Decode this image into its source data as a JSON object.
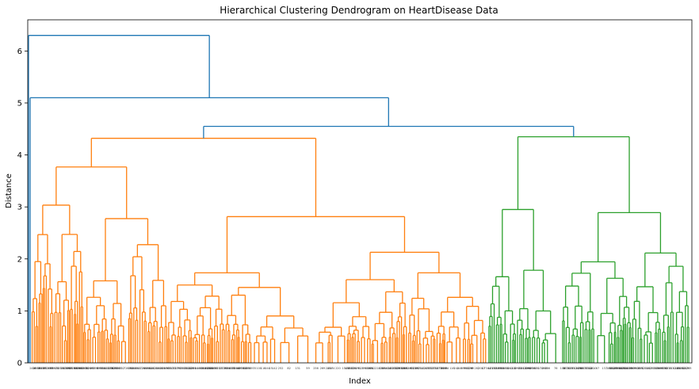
{
  "chart_data": {
    "type": "dendrogram",
    "title": "Hierarchical Clustering Dendrogram on HeartDisease Data",
    "xlabel": "Index",
    "ylabel": "Distance",
    "ylim": [
      0,
      6.6
    ],
    "yticks": [
      0,
      1,
      2,
      3,
      4,
      5,
      6
    ],
    "grid": false,
    "colors": {
      "cluster_orange": "#ff7f0e",
      "cluster_green": "#2ca02c",
      "above_threshold": "#1f77b4"
    },
    "clusters": [
      {
        "color": "#ff7f0e",
        "merge_heights": [
          4.32,
          4.05,
          3.88,
          3.6,
          3.55,
          3.42,
          3.1,
          3.0,
          2.95,
          2.75,
          2.55,
          2.4,
          2.3,
          2.1,
          2.0,
          1.95,
          1.85,
          1.7,
          1.55,
          1.4,
          1.3,
          1.2,
          1.1,
          1.0,
          0.9,
          0.8,
          0.7,
          0.6,
          0.5,
          0.4
        ]
      },
      {
        "color": "#2ca02c",
        "merge_heights": [
          4.35,
          4.02,
          3.83,
          3.5,
          3.15,
          2.68,
          2.45,
          2.3,
          2.1,
          1.9,
          1.8,
          1.6,
          1.5,
          1.4,
          1.3,
          1.2,
          1.1,
          1.0,
          0.9,
          0.8,
          0.7,
          0.6,
          0.5
        ]
      }
    ],
    "top_merges": [
      {
        "height": 6.3
      },
      {
        "height": 5.1
      },
      {
        "height": 4.55
      }
    ]
  }
}
